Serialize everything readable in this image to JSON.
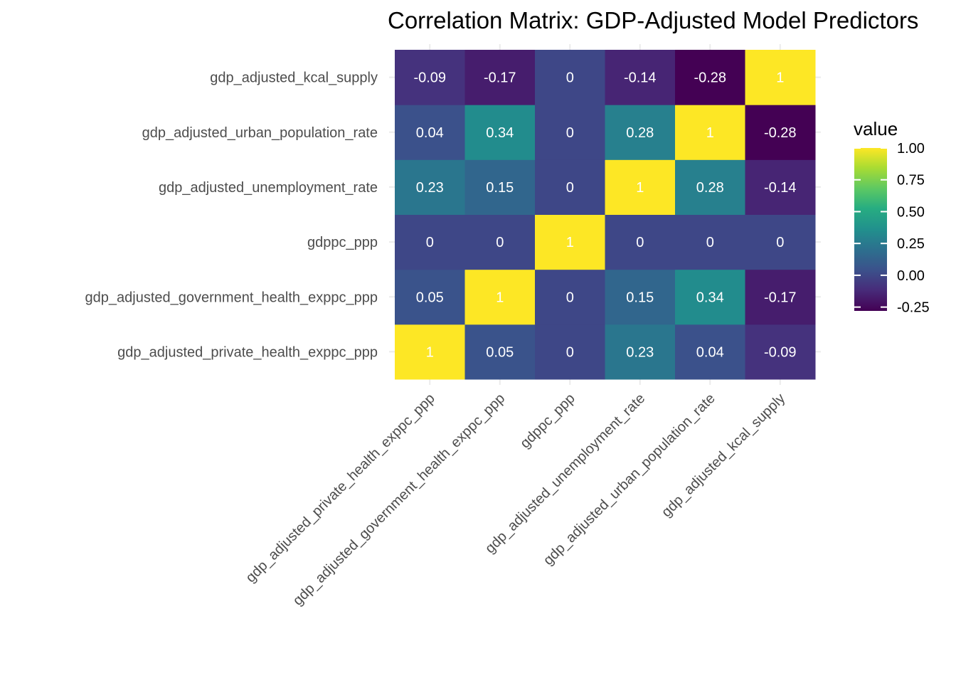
{
  "chart_data": {
    "type": "heatmap",
    "title": "Correlation Matrix: GDP-Adjusted Model Predictors",
    "x_categories": [
      "gdp_adjusted_private_health_exppc_ppp",
      "gdp_adjusted_government_health_exppc_ppp",
      "gdppc_ppp",
      "gdp_adjusted_unemployment_rate",
      "gdp_adjusted_urban_population_rate",
      "gdp_adjusted_kcal_supply"
    ],
    "y_categories": [
      "gdp_adjusted_private_health_exppc_ppp",
      "gdp_adjusted_government_health_exppc_ppp",
      "gdppc_ppp",
      "gdp_adjusted_unemployment_rate",
      "gdp_adjusted_urban_population_rate",
      "gdp_adjusted_kcal_supply"
    ],
    "values": [
      [
        1,
        0.05,
        0,
        0.23,
        0.04,
        -0.09
      ],
      [
        0.05,
        1,
        0,
        0.15,
        0.34,
        -0.17
      ],
      [
        0,
        0,
        1,
        0,
        0,
        0
      ],
      [
        0.23,
        0.15,
        0,
        1,
        0.28,
        -0.14
      ],
      [
        0.04,
        0.34,
        0,
        0.28,
        1,
        -0.28
      ],
      [
        -0.09,
        -0.17,
        0,
        -0.14,
        -0.28,
        1
      ]
    ],
    "cell_labels": [
      [
        "1",
        "0.05",
        "0",
        "0.23",
        "0.04",
        "-0.09"
      ],
      [
        "0.05",
        "1",
        "0",
        "0.15",
        "0.34",
        "-0.17"
      ],
      [
        "0",
        "0",
        "1",
        "0",
        "0",
        "0"
      ],
      [
        "0.23",
        "0.15",
        "0",
        "1",
        "0.28",
        "-0.14"
      ],
      [
        "0.04",
        "0.34",
        "0",
        "0.28",
        "1",
        "-0.28"
      ],
      [
        "-0.09",
        "-0.17",
        "0",
        "-0.14",
        "-0.28",
        "1"
      ]
    ],
    "xlabel": "",
    "ylabel": "",
    "legend": {
      "title": "value",
      "position": "right",
      "ticks": [
        1.0,
        0.75,
        0.5,
        0.25,
        0.0,
        -0.25
      ],
      "tick_labels": [
        "1.00",
        "0.75",
        "0.50",
        "0.25",
        "0.00",
        "-0.25"
      ],
      "range": [
        -0.28,
        1.0
      ],
      "colormap": "viridis"
    },
    "grid": true
  }
}
